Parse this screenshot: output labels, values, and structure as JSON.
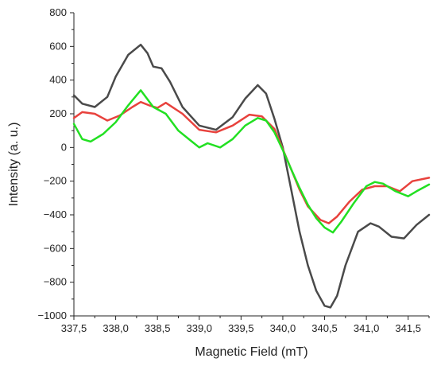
{
  "chart_data": {
    "type": "line",
    "title": "",
    "xlabel": "Magnetic Field (mT)",
    "ylabel": "Intensity (a. u.)",
    "xlim": [
      337.5,
      341.75
    ],
    "ylim": [
      -1000,
      800
    ],
    "xticks": [
      337.5,
      338.0,
      338.5,
      339.0,
      339.5,
      340.0,
      340.5,
      341.0,
      341.5
    ],
    "xtick_labels": [
      "337,5",
      "338,0",
      "338,5",
      "339,0",
      "339,5",
      "340,0",
      "340,5",
      "341,0",
      "341,5"
    ],
    "yticks": [
      -1000,
      -800,
      -600,
      -400,
      -200,
      0,
      200,
      400,
      600,
      800
    ],
    "ytick_labels": [
      "−1000",
      "−800",
      "−600",
      "−400",
      "−200",
      "0",
      "200",
      "400",
      "600",
      "800"
    ],
    "grid": false,
    "legend": "none",
    "series": [
      {
        "color": "#4a4a4a",
        "x": [
          337.5,
          337.6,
          337.75,
          337.9,
          338.0,
          338.15,
          338.3,
          338.38,
          338.45,
          338.55,
          338.65,
          338.8,
          339.0,
          339.2,
          339.4,
          339.55,
          339.7,
          339.8,
          339.9,
          340.0,
          340.1,
          340.2,
          340.3,
          340.4,
          340.5,
          340.57,
          340.65,
          340.75,
          340.9,
          341.05,
          341.15,
          341.3,
          341.45,
          341.6,
          341.75
        ],
        "y": [
          310,
          260,
          240,
          300,
          420,
          550,
          610,
          560,
          480,
          470,
          390,
          240,
          130,
          105,
          180,
          290,
          370,
          320,
          170,
          0,
          -250,
          -500,
          -700,
          -850,
          -940,
          -950,
          -880,
          -700,
          -500,
          -450,
          -470,
          -530,
          -540,
          -460,
          -400
        ]
      },
      {
        "color": "#e8423d",
        "x": [
          337.5,
          337.6,
          337.75,
          337.9,
          338.05,
          338.2,
          338.3,
          338.4,
          338.5,
          338.6,
          338.8,
          339.0,
          339.2,
          339.4,
          339.6,
          339.75,
          339.9,
          340.0,
          340.1,
          340.2,
          340.3,
          340.45,
          340.55,
          340.65,
          340.8,
          340.95,
          341.1,
          341.25,
          341.4,
          341.55,
          341.75
        ],
        "y": [
          175,
          210,
          200,
          160,
          190,
          240,
          270,
          250,
          235,
          265,
          200,
          105,
          90,
          130,
          195,
          185,
          110,
          -10,
          -130,
          -250,
          -350,
          -430,
          -450,
          -410,
          -320,
          -250,
          -230,
          -230,
          -260,
          -200,
          -180
        ]
      },
      {
        "color": "#22e022",
        "x": [
          337.5,
          337.6,
          337.7,
          337.85,
          338.0,
          338.15,
          338.3,
          338.45,
          338.6,
          338.75,
          338.9,
          339.0,
          339.1,
          339.25,
          339.4,
          339.55,
          339.7,
          339.8,
          339.9,
          340.0,
          340.1,
          340.2,
          340.3,
          340.4,
          340.5,
          340.6,
          340.7,
          340.85,
          341.0,
          341.1,
          341.2,
          341.35,
          341.5,
          341.6,
          341.75
        ],
        "y": [
          140,
          50,
          35,
          80,
          150,
          250,
          340,
          240,
          200,
          100,
          40,
          0,
          25,
          0,
          50,
          130,
          175,
          160,
          90,
          -15,
          -130,
          -240,
          -340,
          -420,
          -475,
          -505,
          -440,
          -330,
          -230,
          -205,
          -215,
          -260,
          -290,
          -260,
          -220
        ]
      }
    ]
  }
}
